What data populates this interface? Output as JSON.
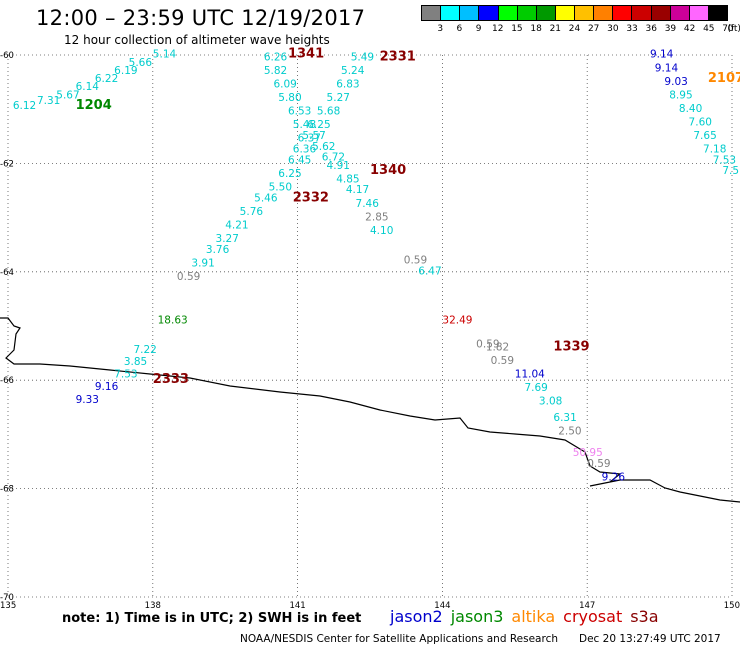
{
  "header": {
    "title": "12:00 – 23:59 UTC 12/19/2017",
    "subtitle": "12 hour collection of altimeter wave heights"
  },
  "legend": {
    "unit_label": "(ft)",
    "colors": [
      "#808080",
      "#00ffff",
      "#00bfff",
      "#0000ff",
      "#00ff00",
      "#00cc00",
      "#009900",
      "#ffff00",
      "#ffc000",
      "#ff8000",
      "#ff0000",
      "#cc0000",
      "#990000",
      "#cc0099",
      "#ff66ff",
      "#000000"
    ],
    "ticks": [
      "3",
      "6",
      "9",
      "12",
      "15",
      "18",
      "21",
      "24",
      "27",
      "30",
      "33",
      "36",
      "39",
      "42",
      "45",
      "70"
    ]
  },
  "axes": {
    "lat_labels": [
      "-60",
      "-62",
      "-64",
      "-66",
      "-68",
      "-70"
    ],
    "lon_labels": [
      "135",
      "138",
      "141",
      "144",
      "147",
      "150"
    ]
  },
  "map": {
    "lon_range": [
      135,
      150
    ],
    "lat_range": [
      -70,
      -60
    ],
    "coastline_color": "#000000",
    "grid_style": "dotted"
  },
  "satellite_colors": {
    "jason2": "#0000cc",
    "jason3": "#008800",
    "altika": "#ff8800",
    "cryosat": "#cc0000",
    "s3a": "#880000",
    "gray": "#808080",
    "cyan": "#00cccc",
    "pink": "#ee82ee"
  },
  "pass_labels": [
    {
      "text": "1341",
      "color": "s3a",
      "lon": 140.8,
      "lat": -60.05
    },
    {
      "text": "2331",
      "color": "s3a",
      "lon": 142.7,
      "lat": -60.1
    },
    {
      "text": "2107",
      "color": "altika",
      "lon": 149.5,
      "lat": -60.5
    },
    {
      "text": "1204",
      "color": "jason3",
      "lon": 136.4,
      "lat": -61.0
    },
    {
      "text": "1340",
      "color": "s3a",
      "lon": 142.5,
      "lat": -62.2
    },
    {
      "text": "2332",
      "color": "s3a",
      "lon": 140.9,
      "lat": -62.7
    },
    {
      "text": "1339",
      "color": "s3a",
      "lon": 146.3,
      "lat": -65.45
    },
    {
      "text": "2333",
      "color": "s3a",
      "lon": 138.0,
      "lat": -66.05
    }
  ],
  "swh_values": [
    {
      "text": "5.14",
      "color": "cyan",
      "lon": 138.0,
      "lat": -60.05
    },
    {
      "text": "5.66",
      "color": "cyan",
      "lon": 137.5,
      "lat": -60.2
    },
    {
      "text": "6.19",
      "color": "cyan",
      "lon": 137.2,
      "lat": -60.35
    },
    {
      "text": "6.22",
      "color": "cyan",
      "lon": 136.8,
      "lat": -60.5
    },
    {
      "text": "6.14",
      "color": "cyan",
      "lon": 136.4,
      "lat": -60.65
    },
    {
      "text": "5.67",
      "color": "cyan",
      "lon": 136.0,
      "lat": -60.8
    },
    {
      "text": "7.31",
      "color": "cyan",
      "lon": 135.6,
      "lat": -60.9
    },
    {
      "text": "6.12",
      "color": "cyan",
      "lon": 135.1,
      "lat": -61.0
    },
    {
      "text": "6.26",
      "color": "cyan",
      "lon": 140.3,
      "lat": -60.1
    },
    {
      "text": "5.82",
      "color": "cyan",
      "lon": 140.3,
      "lat": -60.35
    },
    {
      "text": "6.09",
      "color": "cyan",
      "lon": 140.5,
      "lat": -60.6
    },
    {
      "text": "5.80",
      "color": "cyan",
      "lon": 140.6,
      "lat": -60.85
    },
    {
      "text": "6.53",
      "color": "cyan",
      "lon": 140.8,
      "lat": -61.1
    },
    {
      "text": "5.48",
      "color": "cyan",
      "lon": 140.9,
      "lat": -61.35
    },
    {
      "text": "6.37",
      "color": "cyan",
      "lon": 141.0,
      "lat": -61.6
    },
    {
      "text": "6.36",
      "color": "cyan",
      "lon": 140.9,
      "lat": -61.8
    },
    {
      "text": "6.45",
      "color": "cyan",
      "lon": 140.8,
      "lat": -62.0
    },
    {
      "text": "6.25",
      "color": "cyan",
      "lon": 140.6,
      "lat": -62.25
    },
    {
      "text": "5.50",
      "color": "cyan",
      "lon": 140.4,
      "lat": -62.5
    },
    {
      "text": "5.46",
      "color": "cyan",
      "lon": 140.1,
      "lat": -62.7
    },
    {
      "text": "5.76",
      "color": "cyan",
      "lon": 139.8,
      "lat": -62.95
    },
    {
      "text": "4.21",
      "color": "cyan",
      "lon": 139.5,
      "lat": -63.2
    },
    {
      "text": "3.27",
      "color": "cyan",
      "lon": 139.3,
      "lat": -63.45
    },
    {
      "text": "3.76",
      "color": "cyan",
      "lon": 139.1,
      "lat": -63.65
    },
    {
      "text": "3.91",
      "color": "cyan",
      "lon": 138.8,
      "lat": -63.9
    },
    {
      "text": "5.49",
      "color": "cyan",
      "lon": 142.1,
      "lat": -60.1
    },
    {
      "text": "5.24",
      "color": "cyan",
      "lon": 141.9,
      "lat": -60.35
    },
    {
      "text": "6.83",
      "color": "cyan",
      "lon": 141.8,
      "lat": -60.6
    },
    {
      "text": "5.27",
      "color": "cyan",
      "lon": 141.6,
      "lat": -60.85
    },
    {
      "text": "5.68",
      "color": "cyan",
      "lon": 141.4,
      "lat": -61.1
    },
    {
      "text": "6.25",
      "color": "cyan",
      "lon": 141.2,
      "lat": -61.35
    },
    {
      "text": "5.57",
      "color": "cyan",
      "lon": 141.1,
      "lat": -61.55
    },
    {
      "text": "5.62",
      "color": "cyan",
      "lon": 141.3,
      "lat": -61.75
    },
    {
      "text": "6.72",
      "color": "cyan",
      "lon": 141.5,
      "lat": -61.95
    },
    {
      "text": "4.91",
      "color": "cyan",
      "lon": 141.6,
      "lat": -62.1
    },
    {
      "text": "4.85",
      "color": "cyan",
      "lon": 141.8,
      "lat": -62.35
    },
    {
      "text": "4.17",
      "color": "cyan",
      "lon": 142.0,
      "lat": -62.55
    },
    {
      "text": "7.46",
      "color": "cyan",
      "lon": 142.2,
      "lat": -62.8
    },
    {
      "text": "2.85",
      "color": "gray",
      "lon": 142.4,
      "lat": -63.05
    },
    {
      "text": "4.10",
      "color": "cyan",
      "lon": 142.5,
      "lat": -63.3
    },
    {
      "text": "0.59",
      "color": "gray",
      "lon": 138.5,
      "lat": -64.15
    },
    {
      "text": "0.59",
      "color": "gray",
      "lon": 143.2,
      "lat": -63.85
    },
    {
      "text": "6.47",
      "color": "cyan",
      "lon": 143.5,
      "lat": -64.05
    },
    {
      "text": "32.49",
      "color": "cryosat",
      "lon": 144.0,
      "lat": -64.95
    },
    {
      "text": "18.63",
      "color": "jason3",
      "lon": 138.1,
      "lat": -64.95
    },
    {
      "text": "7.22",
      "color": "cyan",
      "lon": 137.6,
      "lat": -65.5
    },
    {
      "text": "3.85",
      "color": "cyan",
      "lon": 137.4,
      "lat": -65.72
    },
    {
      "text": "7.53",
      "color": "cyan",
      "lon": 137.2,
      "lat": -65.95
    },
    {
      "text": "9.16",
      "color": "jason2",
      "lon": 136.8,
      "lat": -66.18
    },
    {
      "text": "9.33",
      "color": "jason2",
      "lon": 136.4,
      "lat": -66.42
    },
    {
      "text": "0.59",
      "color": "gray",
      "lon": 144.7,
      "lat": -65.4
    },
    {
      "text": "1.82",
      "color": "gray",
      "lon": 144.9,
      "lat": -65.45
    },
    {
      "text": "0.59",
      "color": "gray",
      "lon": 145.0,
      "lat": -65.7
    },
    {
      "text": "11.04",
      "color": "jason2",
      "lon": 145.5,
      "lat": -65.95
    },
    {
      "text": "7.69",
      "color": "cyan",
      "lon": 145.7,
      "lat": -66.2
    },
    {
      "text": "3.08",
      "color": "cyan",
      "lon": 146.0,
      "lat": -66.45
    },
    {
      "text": "6.31",
      "color": "cyan",
      "lon": 146.3,
      "lat": -66.75
    },
    {
      "text": "2.50",
      "color": "gray",
      "lon": 146.4,
      "lat": -67.0
    },
    {
      "text": "50.95",
      "color": "pink",
      "lon": 146.7,
      "lat": -67.4
    },
    {
      "text": "0.59",
      "color": "gray",
      "lon": 147.0,
      "lat": -67.6
    },
    {
      "text": "9.26",
      "color": "jason2",
      "lon": 147.3,
      "lat": -67.85
    },
    {
      "text": "9.14",
      "color": "jason2",
      "lon": 148.3,
      "lat": -60.05
    },
    {
      "text": "9.14",
      "color": "jason2",
      "lon": 148.4,
      "lat": -60.3
    },
    {
      "text": "9.03",
      "color": "jason2",
      "lon": 148.6,
      "lat": -60.55
    },
    {
      "text": "8.95",
      "color": "cyan",
      "lon": 148.7,
      "lat": -60.8
    },
    {
      "text": "8.40",
      "color": "cyan",
      "lon": 148.9,
      "lat": -61.05
    },
    {
      "text": "7.60",
      "color": "cyan",
      "lon": 149.1,
      "lat": -61.3
    },
    {
      "text": "7.65",
      "color": "cyan",
      "lon": 149.2,
      "lat": -61.55
    },
    {
      "text": "7.18",
      "color": "cyan",
      "lon": 149.4,
      "lat": -61.8
    },
    {
      "text": "7.53",
      "color": "cyan",
      "lon": 149.6,
      "lat": -62.0
    },
    {
      "text": "7.5",
      "color": "cyan",
      "lon": 149.8,
      "lat": -62.2
    }
  ],
  "note": "note: 1) Time is in UTC; 2) SWH is in feet",
  "satellite_legend": [
    {
      "name": "jason2",
      "color": "jason2"
    },
    {
      "name": "jason3",
      "color": "jason3"
    },
    {
      "name": "altika",
      "color": "altika"
    },
    {
      "name": "cryosat",
      "color": "cryosat"
    },
    {
      "name": "s3a",
      "color": "s3a"
    }
  ],
  "footer": {
    "credit": "NOAA/NESDIS Center for Satellite Applications and Research",
    "timestamp": "Dec 20 13:27:49 UTC 2017"
  }
}
